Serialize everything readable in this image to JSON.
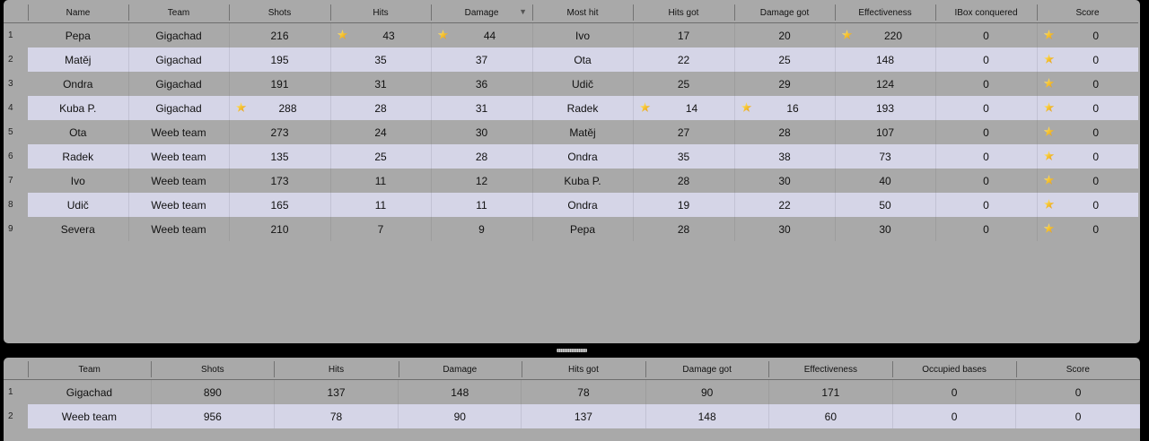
{
  "players": {
    "columns": [
      "Name",
      "Team",
      "Shots",
      "Hits",
      "Damage",
      "Most hit",
      "Hits got",
      "Damage got",
      "Effectiveness",
      "IBox conquered",
      "Score"
    ],
    "sort_column": "Damage",
    "sort_indicator": "▼",
    "rows": [
      {
        "n": "1",
        "name": "Pepa",
        "team": "Gigachad",
        "shots": "216",
        "hits": "43",
        "damage": "44",
        "most_hit": "Ivo",
        "hits_got": "17",
        "damage_got": "20",
        "effectiveness": "220",
        "ibox": "0",
        "score": "0",
        "stars": [
          "hits",
          "damage",
          "effectiveness",
          "score"
        ]
      },
      {
        "n": "2",
        "name": "Matěj",
        "team": "Gigachad",
        "shots": "195",
        "hits": "35",
        "damage": "37",
        "most_hit": "Ota",
        "hits_got": "22",
        "damage_got": "25",
        "effectiveness": "148",
        "ibox": "0",
        "score": "0",
        "stars": [
          "score"
        ]
      },
      {
        "n": "3",
        "name": "Ondra",
        "team": "Gigachad",
        "shots": "191",
        "hits": "31",
        "damage": "36",
        "most_hit": "Udič",
        "hits_got": "25",
        "damage_got": "29",
        "effectiveness": "124",
        "ibox": "0",
        "score": "0",
        "stars": [
          "score"
        ]
      },
      {
        "n": "4",
        "name": "Kuba P.",
        "team": "Gigachad",
        "shots": "288",
        "hits": "28",
        "damage": "31",
        "most_hit": "Radek",
        "hits_got": "14",
        "damage_got": "16",
        "effectiveness": "193",
        "ibox": "0",
        "score": "0",
        "stars": [
          "shots",
          "hits_got",
          "damage_got",
          "score"
        ]
      },
      {
        "n": "5",
        "name": "Ota",
        "team": "Weeb team",
        "shots": "273",
        "hits": "24",
        "damage": "30",
        "most_hit": "Matěj",
        "hits_got": "27",
        "damage_got": "28",
        "effectiveness": "107",
        "ibox": "0",
        "score": "0",
        "stars": [
          "score"
        ]
      },
      {
        "n": "6",
        "name": "Radek",
        "team": "Weeb team",
        "shots": "135",
        "hits": "25",
        "damage": "28",
        "most_hit": "Ondra",
        "hits_got": "35",
        "damage_got": "38",
        "effectiveness": "73",
        "ibox": "0",
        "score": "0",
        "stars": [
          "score"
        ]
      },
      {
        "n": "7",
        "name": "Ivo",
        "team": "Weeb team",
        "shots": "173",
        "hits": "11",
        "damage": "12",
        "most_hit": "Kuba P.",
        "hits_got": "28",
        "damage_got": "30",
        "effectiveness": "40",
        "ibox": "0",
        "score": "0",
        "stars": [
          "score"
        ]
      },
      {
        "n": "8",
        "name": "Udič",
        "team": "Weeb team",
        "shots": "165",
        "hits": "11",
        "damage": "11",
        "most_hit": "Ondra",
        "hits_got": "19",
        "damage_got": "22",
        "effectiveness": "50",
        "ibox": "0",
        "score": "0",
        "stars": [
          "score"
        ]
      },
      {
        "n": "9",
        "name": "Severa",
        "team": "Weeb team",
        "shots": "210",
        "hits": "7",
        "damage": "9",
        "most_hit": "Pepa",
        "hits_got": "28",
        "damage_got": "30",
        "effectiveness": "30",
        "ibox": "0",
        "score": "0",
        "stars": [
          "score"
        ]
      }
    ]
  },
  "teams": {
    "columns": [
      "Team",
      "Shots",
      "Hits",
      "Damage",
      "Hits got",
      "Damage got",
      "Effectiveness",
      "Occupied bases",
      "Score"
    ],
    "rows": [
      {
        "n": "1",
        "team": "Gigachad",
        "shots": "890",
        "hits": "137",
        "damage": "148",
        "hits_got": "78",
        "damage_got": "90",
        "effectiveness": "171",
        "bases": "0",
        "score": "0"
      },
      {
        "n": "2",
        "team": "Weeb team",
        "shots": "956",
        "hits": "78",
        "damage": "90",
        "hits_got": "137",
        "damage_got": "148",
        "effectiveness": "60",
        "bases": "0",
        "score": "0"
      }
    ]
  },
  "icons": {
    "best_value": "star-icon"
  },
  "colors": {
    "row_alt": "#d5d5e7",
    "panel": "#a9a9a9",
    "star": "#f6c531"
  }
}
